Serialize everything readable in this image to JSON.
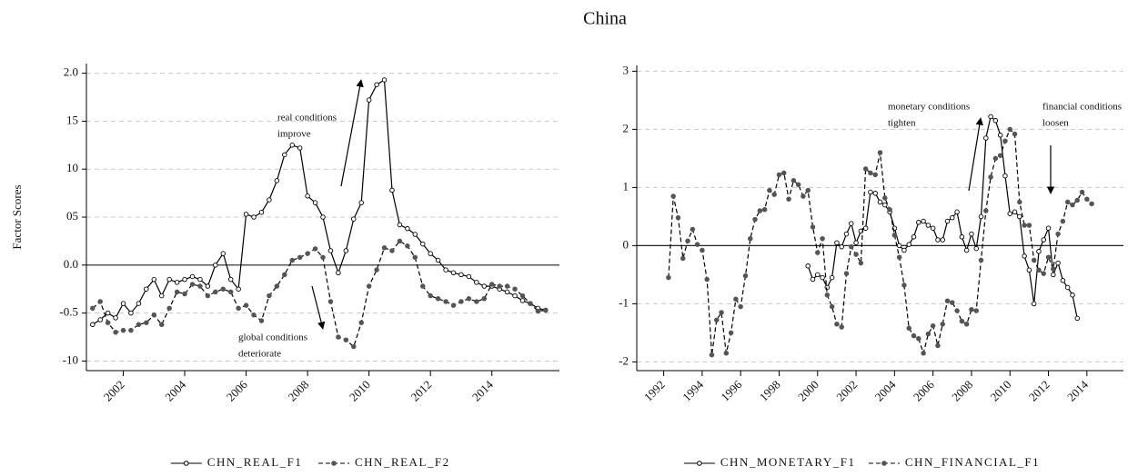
{
  "title": "China",
  "chart_data": [
    {
      "type": "line",
      "y_label": "Factor Scores",
      "x": [
        2001,
        2001.25,
        2001.5,
        2001.75,
        2002,
        2002.25,
        2002.5,
        2002.75,
        2003,
        2003.25,
        2003.5,
        2003.75,
        2004,
        2004.25,
        2004.5,
        2004.75,
        2005,
        2005.25,
        2005.5,
        2005.75,
        2006,
        2006.25,
        2006.5,
        2006.75,
        2007,
        2007.25,
        2007.5,
        2007.75,
        2008,
        2008.25,
        2008.5,
        2008.75,
        2009,
        2009.25,
        2009.5,
        2009.75,
        2010,
        2010.25,
        2010.5,
        2010.75,
        2011,
        2011.25,
        2011.5,
        2011.75,
        2012,
        2012.25,
        2012.5,
        2012.75,
        2013,
        2013.25,
        2013.5,
        2013.75,
        2014,
        2014.25,
        2014.5,
        2014.75,
        2015,
        2015.25,
        2015.5,
        2015.75
      ],
      "series": [
        {
          "name": "CHN_REAL_F1",
          "color": "#000000",
          "line_style": "solid",
          "marker": "open",
          "values": [
            -0.62,
            -0.57,
            -0.5,
            -0.55,
            -0.4,
            -0.5,
            -0.4,
            -0.25,
            -0.15,
            -0.32,
            -0.15,
            -0.18,
            -0.15,
            -0.12,
            -0.15,
            -0.22,
            0.0,
            0.12,
            -0.15,
            -0.25,
            0.53,
            0.5,
            0.55,
            0.68,
            0.88,
            1.15,
            1.25,
            1.22,
            0.72,
            0.65,
            0.5,
            0.15,
            -0.08,
            0.15,
            0.48,
            0.65,
            1.72,
            1.88,
            1.93,
            0.78,
            0.42,
            0.38,
            0.32,
            0.22,
            0.12,
            0.05,
            -0.05,
            -0.08,
            -0.1,
            -0.12,
            -0.18,
            -0.22,
            -0.22,
            -0.25,
            -0.28,
            -0.32,
            -0.37,
            -0.4,
            -0.45,
            -0.47
          ]
        },
        {
          "name": "CHN_REAL_F2",
          "color": "#000000",
          "line_style": "dashed",
          "marker": "filled",
          "values": [
            -0.45,
            -0.38,
            -0.6,
            -0.7,
            -0.68,
            -0.68,
            -0.62,
            -0.6,
            -0.52,
            -0.62,
            -0.45,
            -0.28,
            -0.3,
            -0.2,
            -0.22,
            -0.32,
            -0.28,
            -0.25,
            -0.28,
            -0.45,
            -0.42,
            -0.52,
            -0.58,
            -0.32,
            -0.22,
            -0.1,
            0.05,
            0.08,
            0.12,
            0.17,
            0.08,
            -0.38,
            -0.75,
            -0.78,
            -0.85,
            -0.6,
            -0.22,
            -0.05,
            0.18,
            0.15,
            0.25,
            0.2,
            0.08,
            -0.22,
            -0.32,
            -0.35,
            -0.38,
            -0.42,
            -0.38,
            -0.35,
            -0.38,
            -0.35,
            -0.2,
            -0.22,
            -0.22,
            -0.25,
            -0.32,
            -0.4,
            -0.48,
            -0.47
          ]
        }
      ],
      "xlim": [
        2000.8,
        2016.2
      ],
      "xticks": [
        2002,
        2004,
        2006,
        2008,
        2010,
        2012,
        2014
      ],
      "ylim": [
        -1.1,
        2.1
      ],
      "yticks": [
        {
          "value": 2.0,
          "label": "2.0"
        },
        {
          "value": 1.5,
          "label": "15"
        },
        {
          "value": 1.0,
          "label": "10"
        },
        {
          "value": 0.5,
          "label": "05"
        },
        {
          "value": 0.0,
          "label": "0.0"
        },
        -0.5,
        {
          "value": -1.0,
          "label": "-10"
        }
      ],
      "grid": true,
      "legend": "bottom",
      "annotations": [
        [
          "real conditions",
          "improve"
        ],
        [
          "global conditions",
          "deteriorate"
        ]
      ]
    },
    {
      "type": "line",
      "x": [
        1992.25,
        1992.5,
        1992.75,
        1993,
        1993.25,
        1993.5,
        1993.75,
        1994,
        1994.25,
        1994.5,
        1994.75,
        1995,
        1995.25,
        1995.5,
        1995.75,
        1996,
        1996.25,
        1996.5,
        1996.75,
        1997,
        1997.25,
        1997.5,
        1997.75,
        1998,
        1998.25,
        1998.5,
        1998.75,
        1999,
        1999.25,
        1999.5,
        1999.75,
        2000,
        2000.25,
        2000.5,
        2000.75,
        2001,
        2001.25,
        2001.5,
        2001.75,
        2002,
        2002.25,
        2002.5,
        2002.75,
        2003,
        2003.25,
        2003.5,
        2003.75,
        2004,
        2004.25,
        2004.5,
        2004.75,
        2005,
        2005.25,
        2005.5,
        2005.75,
        2006,
        2006.25,
        2006.5,
        2006.75,
        2007,
        2007.25,
        2007.5,
        2007.75,
        2008,
        2008.25,
        2008.5,
        2008.75,
        2009,
        2009.25,
        2009.5,
        2009.75,
        2010,
        2010.25,
        2010.5,
        2010.75,
        2011,
        2011.25,
        2011.5,
        2011.75,
        2012,
        2012.25,
        2012.5,
        2012.75,
        2013,
        2013.25,
        2013.5,
        2013.75,
        2014,
        2014.25
      ],
      "series": [
        {
          "name": "CHN_MONETARY_F1",
          "color": "#000000",
          "line_style": "solid",
          "marker": "open",
          "values": [
            null,
            null,
            null,
            null,
            null,
            null,
            null,
            null,
            null,
            null,
            null,
            null,
            null,
            null,
            null,
            null,
            null,
            null,
            null,
            null,
            null,
            null,
            null,
            null,
            null,
            null,
            null,
            null,
            null,
            -0.35,
            -0.58,
            -0.5,
            -0.55,
            -0.72,
            -0.55,
            0.05,
            -0.02,
            0.2,
            0.38,
            0.05,
            0.25,
            0.3,
            0.92,
            0.9,
            0.75,
            0.7,
            0.58,
            0.3,
            0.0,
            -0.08,
            0.02,
            0.15,
            0.4,
            0.42,
            0.35,
            0.3,
            0.1,
            0.1,
            0.42,
            0.48,
            0.58,
            0.15,
            -0.08,
            0.2,
            -0.05,
            0.5,
            1.85,
            2.22,
            2.15,
            1.9,
            1.2,
            0.55,
            0.58,
            0.5,
            -0.18,
            -0.42,
            -1.0,
            -0.1,
            0.1,
            0.3,
            -0.5,
            -0.3,
            -0.6,
            -0.72,
            -0.85,
            -1.25,
            null,
            null,
            null
          ]
        },
        {
          "name": "CHN_FINANCIAL_F1",
          "color": "#000000",
          "line_style": "dashed",
          "marker": "filled",
          "values": [
            -0.55,
            0.85,
            0.48,
            -0.22,
            0.08,
            0.28,
            0.02,
            -0.08,
            -0.58,
            -1.88,
            -1.28,
            -1.15,
            -1.85,
            -1.5,
            -0.92,
            -1.05,
            -0.52,
            0.12,
            0.45,
            0.6,
            0.62,
            0.95,
            0.88,
            1.22,
            1.25,
            0.8,
            1.12,
            1.05,
            0.85,
            0.95,
            0.32,
            -0.12,
            0.12,
            -0.85,
            -1.05,
            -1.35,
            -1.4,
            -0.48,
            -0.02,
            -0.15,
            -0.3,
            1.32,
            1.25,
            1.22,
            1.6,
            0.82,
            0.62,
            0.18,
            -0.2,
            -0.68,
            -1.42,
            -1.55,
            -1.6,
            -1.85,
            -1.52,
            -1.38,
            -1.72,
            -1.35,
            -0.95,
            -0.98,
            -1.12,
            -1.3,
            -1.35,
            -1.1,
            -1.12,
            -0.25,
            0.6,
            1.18,
            1.5,
            1.55,
            1.8,
            2.0,
            1.92,
            0.75,
            0.35,
            0.35,
            -0.25,
            -0.42,
            -0.48,
            -0.2,
            -0.4,
            0.2,
            0.42,
            0.75,
            0.7,
            0.78,
            0.92,
            0.8,
            0.72
          ]
        }
      ],
      "xlim": [
        1990.6,
        2015.9
      ],
      "xticks": [
        1992,
        1994,
        1996,
        1998,
        2000,
        2002,
        2004,
        2006,
        2008,
        2010,
        2012,
        2014
      ],
      "ylim": [
        -2.15,
        3.1
      ],
      "yticks": [
        -2,
        -1,
        0,
        1,
        2,
        3
      ],
      "grid": true,
      "legend": "bottom",
      "annotations": [
        [
          "monetary conditions",
          "tighten"
        ],
        [
          "financial conditions",
          "loosen"
        ]
      ]
    }
  ]
}
